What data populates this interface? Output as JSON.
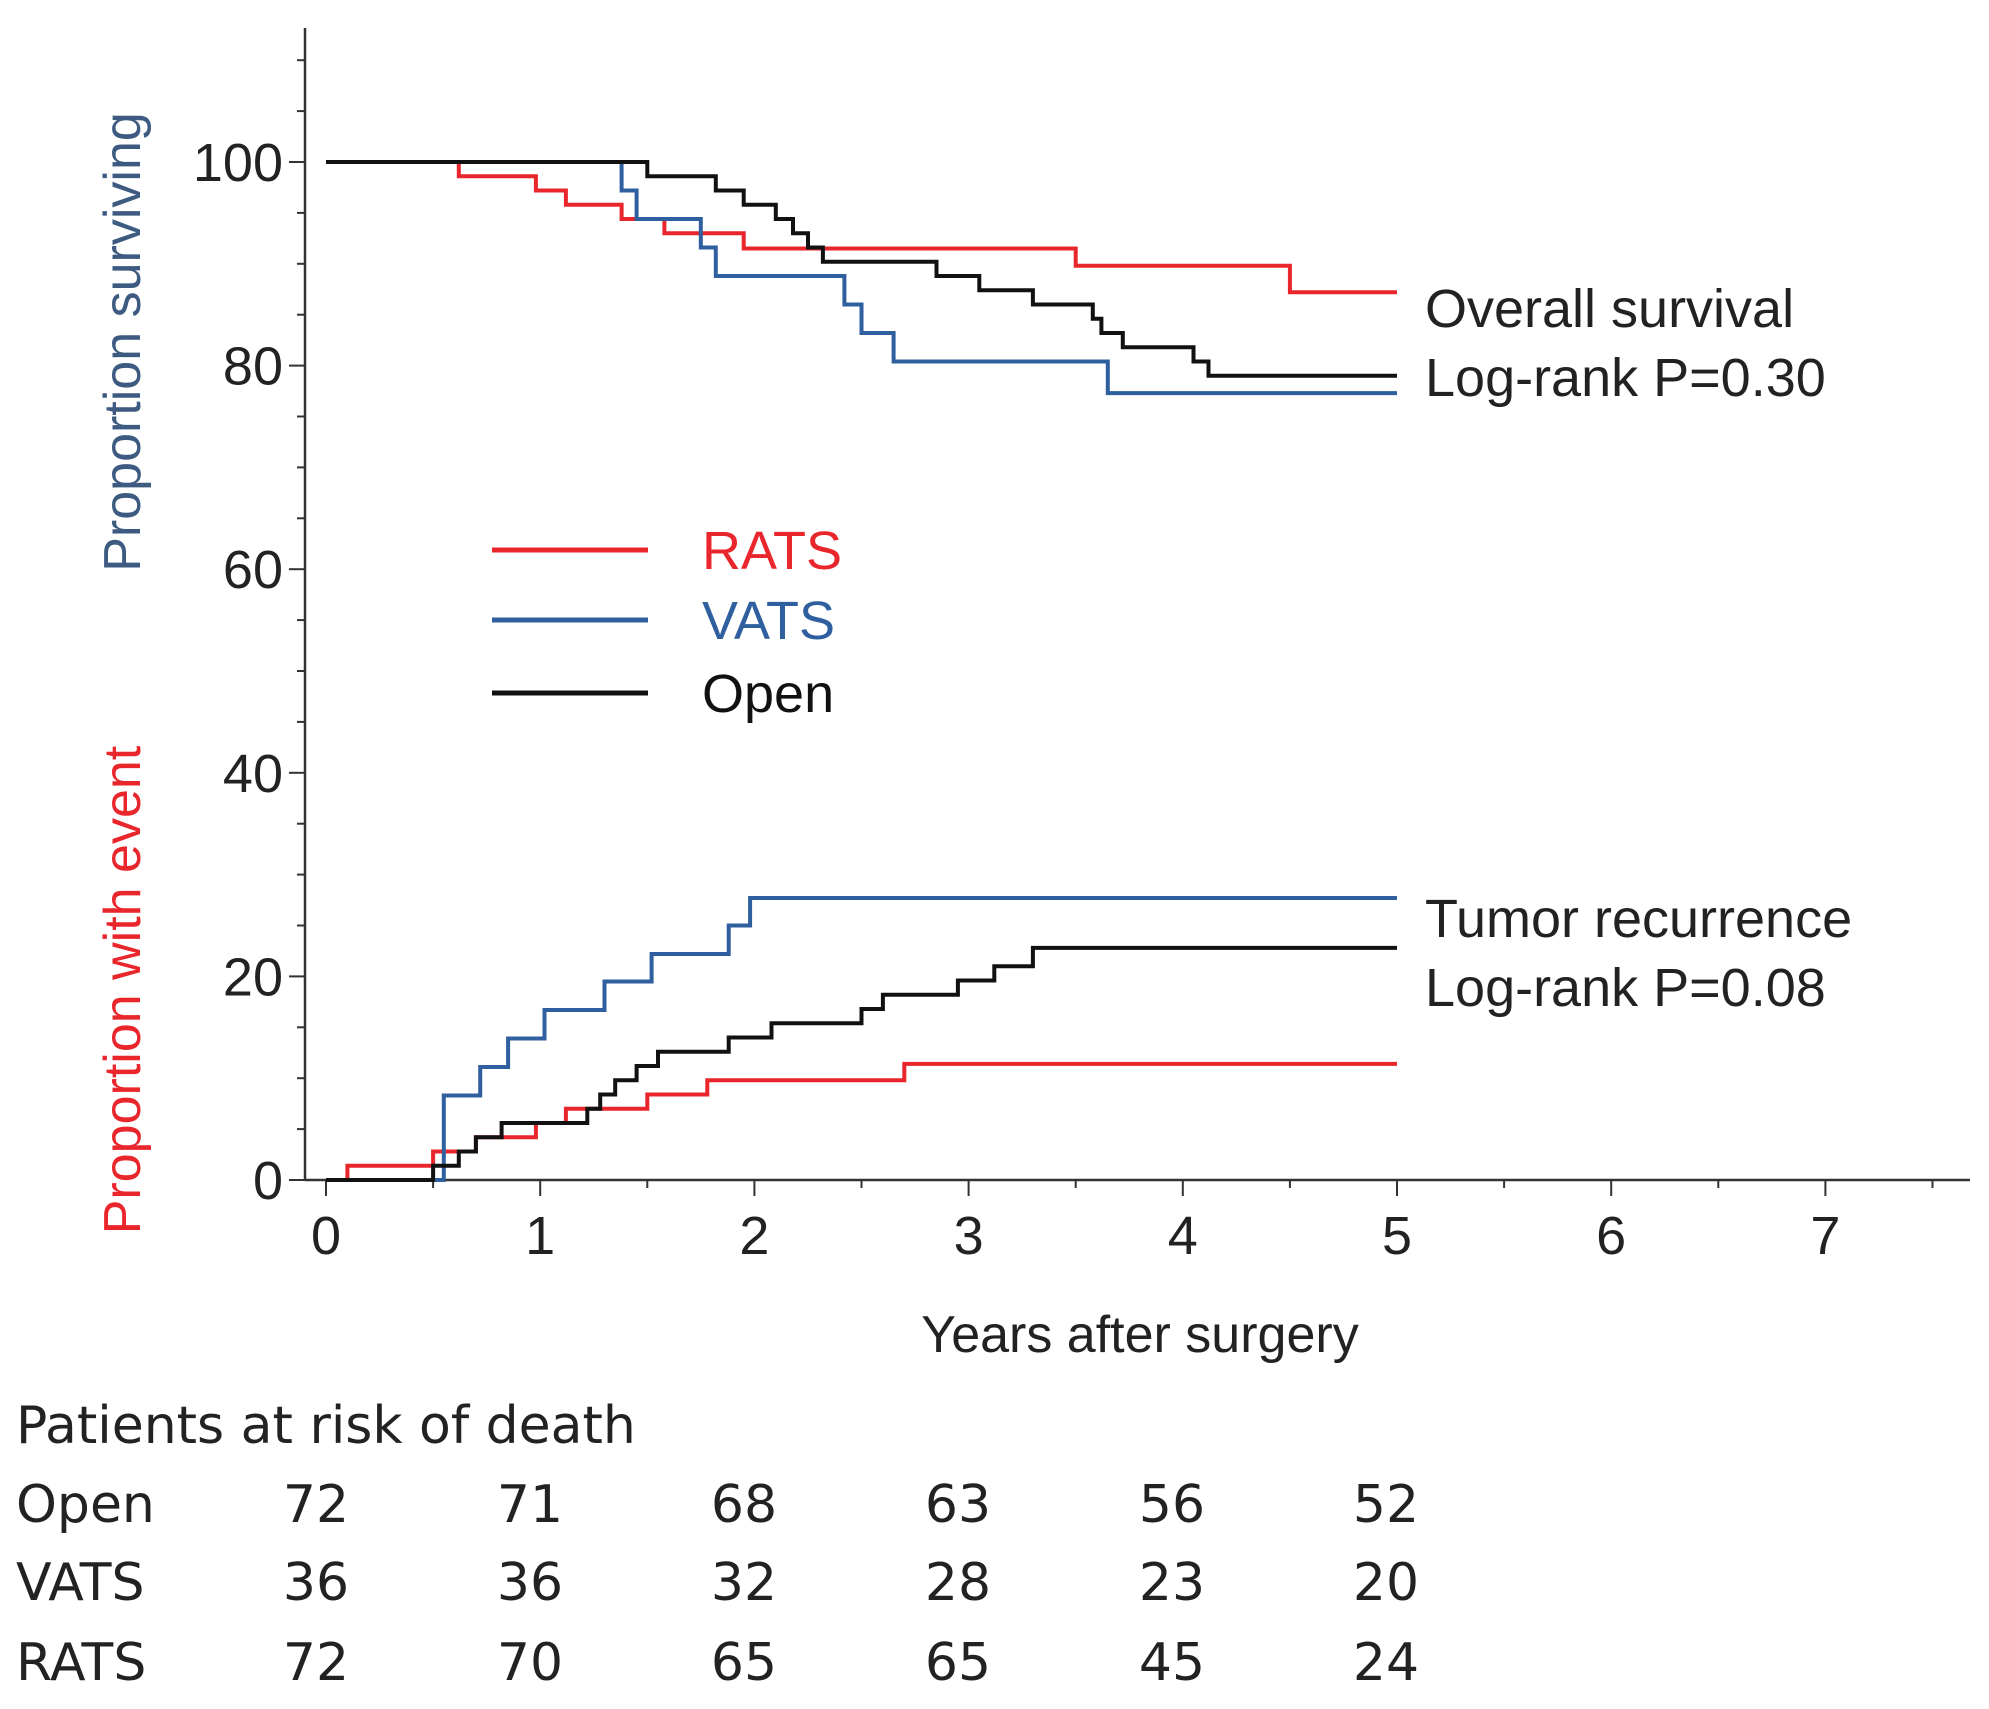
{
  "chart_data": {
    "type": "line",
    "subtype": "kaplan-meier",
    "xlabel": "Years after surgery",
    "ylabel_top": "Proportion surviving",
    "ylabel_bottom": "Proportion with event",
    "xlim": [
      0,
      7.6
    ],
    "ylim": [
      0,
      112
    ],
    "xticks": [
      0,
      1,
      2,
      3,
      4,
      5,
      6,
      7
    ],
    "yticks": [
      0,
      20,
      40,
      60,
      80,
      100
    ],
    "colors": {
      "RATS": "#e8262b",
      "VATS": "#2f5f9e",
      "Open": "#111111",
      "ylabel_top": "#3d5a80",
      "ylabel_bottom": "#e8262b"
    },
    "legend": [
      {
        "name": "RATS",
        "color": "#e8262b"
      },
      {
        "name": "VATS",
        "color": "#2f5f9e"
      },
      {
        "name": "Open",
        "color": "#111111"
      }
    ],
    "annotations": {
      "survival_title": "Overall survival",
      "survival_p": "Log-rank  P=0.30",
      "recurrence_title": "Tumor recurrence",
      "recurrence_p": "Log-rank  P=0.08"
    },
    "series": [
      {
        "name": "RATS",
        "group": "overall_survival",
        "color": "#e8262b",
        "points": [
          [
            0,
            100
          ],
          [
            0.62,
            100
          ],
          [
            0.62,
            98.6
          ],
          [
            0.98,
            98.6
          ],
          [
            0.98,
            97.2
          ],
          [
            1.12,
            97.2
          ],
          [
            1.12,
            95.8
          ],
          [
            1.38,
            95.8
          ],
          [
            1.38,
            94.4
          ],
          [
            1.58,
            94.4
          ],
          [
            1.58,
            93
          ],
          [
            1.95,
            93
          ],
          [
            1.95,
            91.5
          ],
          [
            3.5,
            91.5
          ],
          [
            3.5,
            89.8
          ],
          [
            4.5,
            89.8
          ],
          [
            4.5,
            87.2
          ],
          [
            5,
            87.2
          ]
        ]
      },
      {
        "name": "VATS",
        "group": "overall_survival",
        "color": "#2f5f9e",
        "points": [
          [
            0,
            100
          ],
          [
            1.38,
            100
          ],
          [
            1.38,
            97.2
          ],
          [
            1.45,
            97.2
          ],
          [
            1.45,
            94.4
          ],
          [
            1.75,
            94.4
          ],
          [
            1.75,
            91.6
          ],
          [
            1.82,
            91.6
          ],
          [
            1.82,
            88.8
          ],
          [
            2.42,
            88.8
          ],
          [
            2.42,
            86
          ],
          [
            2.5,
            86
          ],
          [
            2.5,
            83.2
          ],
          [
            2.65,
            83.2
          ],
          [
            2.65,
            80.4
          ],
          [
            3.65,
            80.4
          ],
          [
            3.65,
            77.3
          ],
          [
            5,
            77.3
          ]
        ]
      },
      {
        "name": "Open",
        "group": "overall_survival",
        "color": "#111111",
        "points": [
          [
            0,
            100
          ],
          [
            1.5,
            100
          ],
          [
            1.5,
            98.6
          ],
          [
            1.82,
            98.6
          ],
          [
            1.82,
            97.2
          ],
          [
            1.95,
            97.2
          ],
          [
            1.95,
            95.8
          ],
          [
            2.1,
            95.8
          ],
          [
            2.1,
            94.4
          ],
          [
            2.18,
            94.4
          ],
          [
            2.18,
            93
          ],
          [
            2.25,
            93
          ],
          [
            2.25,
            91.6
          ],
          [
            2.32,
            91.6
          ],
          [
            2.32,
            90.2
          ],
          [
            2.85,
            90.2
          ],
          [
            2.85,
            88.8
          ],
          [
            3.05,
            88.8
          ],
          [
            3.05,
            87.4
          ],
          [
            3.3,
            87.4
          ],
          [
            3.3,
            86
          ],
          [
            3.58,
            86
          ],
          [
            3.58,
            84.6
          ],
          [
            3.62,
            84.6
          ],
          [
            3.62,
            83.2
          ],
          [
            3.72,
            83.2
          ],
          [
            3.72,
            81.8
          ],
          [
            4.05,
            81.8
          ],
          [
            4.05,
            80.4
          ],
          [
            4.12,
            80.4
          ],
          [
            4.12,
            79
          ],
          [
            5,
            79
          ]
        ]
      },
      {
        "name": "RATS",
        "group": "tumor_recurrence",
        "color": "#e8262b",
        "points": [
          [
            0,
            0
          ],
          [
            0.1,
            0
          ],
          [
            0.1,
            1.4
          ],
          [
            0.5,
            1.4
          ],
          [
            0.5,
            2.8
          ],
          [
            0.7,
            2.8
          ],
          [
            0.7,
            4.2
          ],
          [
            0.98,
            4.2
          ],
          [
            0.98,
            5.6
          ],
          [
            1.12,
            5.6
          ],
          [
            1.12,
            7
          ],
          [
            1.5,
            7
          ],
          [
            1.5,
            8.4
          ],
          [
            1.78,
            8.4
          ],
          [
            1.78,
            9.8
          ],
          [
            2.7,
            9.8
          ],
          [
            2.7,
            11.4
          ],
          [
            5,
            11.4
          ]
        ]
      },
      {
        "name": "VATS",
        "group": "tumor_recurrence",
        "color": "#2f5f9e",
        "points": [
          [
            0,
            0
          ],
          [
            0.55,
            0
          ],
          [
            0.55,
            8.3
          ],
          [
            0.72,
            8.3
          ],
          [
            0.72,
            11.1
          ],
          [
            0.85,
            11.1
          ],
          [
            0.85,
            13.9
          ],
          [
            1.02,
            13.9
          ],
          [
            1.02,
            16.7
          ],
          [
            1.3,
            16.7
          ],
          [
            1.3,
            19.5
          ],
          [
            1.52,
            19.5
          ],
          [
            1.52,
            22.2
          ],
          [
            1.88,
            22.2
          ],
          [
            1.88,
            25
          ],
          [
            1.98,
            25
          ],
          [
            1.98,
            27.7
          ],
          [
            5,
            27.7
          ]
        ]
      },
      {
        "name": "Open",
        "group": "tumor_recurrence",
        "color": "#111111",
        "points": [
          [
            0,
            0
          ],
          [
            0.5,
            0
          ],
          [
            0.5,
            1.4
          ],
          [
            0.62,
            1.4
          ],
          [
            0.62,
            2.8
          ],
          [
            0.7,
            2.8
          ],
          [
            0.7,
            4.2
          ],
          [
            0.82,
            4.2
          ],
          [
            0.82,
            5.6
          ],
          [
            1.22,
            5.6
          ],
          [
            1.22,
            7
          ],
          [
            1.28,
            7
          ],
          [
            1.28,
            8.4
          ],
          [
            1.35,
            8.4
          ],
          [
            1.35,
            9.8
          ],
          [
            1.45,
            9.8
          ],
          [
            1.45,
            11.2
          ],
          [
            1.55,
            11.2
          ],
          [
            1.55,
            12.6
          ],
          [
            1.88,
            12.6
          ],
          [
            1.88,
            14
          ],
          [
            2.08,
            14
          ],
          [
            2.08,
            15.4
          ],
          [
            2.5,
            15.4
          ],
          [
            2.5,
            16.8
          ],
          [
            2.6,
            16.8
          ],
          [
            2.6,
            18.2
          ],
          [
            2.95,
            18.2
          ],
          [
            2.95,
            19.6
          ],
          [
            3.12,
            19.6
          ],
          [
            3.12,
            21
          ],
          [
            3.3,
            21
          ],
          [
            3.3,
            22.8
          ],
          [
            5,
            22.8
          ]
        ]
      }
    ],
    "risk_table": {
      "title": "Patients at risk of death",
      "years": [
        0,
        1,
        2,
        3,
        4,
        5
      ],
      "rows": [
        {
          "name": "Open",
          "values": [
            "72",
            "71",
            "68",
            "63",
            "56",
            "52"
          ]
        },
        {
          "name": "VATS",
          "values": [
            "36",
            "36",
            "32",
            "28",
            "23",
            "20"
          ]
        },
        {
          "name": "RATS",
          "values": [
            "72",
            "70",
            "65",
            "65",
            "45",
            "24"
          ]
        }
      ]
    }
  }
}
